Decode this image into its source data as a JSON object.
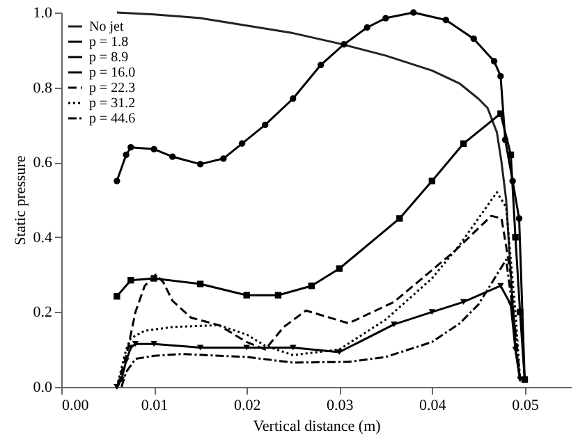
{
  "chart_data": {
    "type": "line",
    "xlabel": "Vertical distance (m)",
    "ylabel": "Static pressure",
    "xlim": [
      0,
      0.055
    ],
    "ylim": [
      0,
      1.0
    ],
    "xticks": [
      {
        "value": 0,
        "label": "0.00"
      },
      {
        "value": 0.01,
        "label": "0.01"
      },
      {
        "value": 0.02,
        "label": "0.02"
      },
      {
        "value": 0.03,
        "label": "0.03"
      },
      {
        "value": 0.04,
        "label": "0.04"
      },
      {
        "value": 0.05,
        "label": "0.05"
      }
    ],
    "yticks": [
      {
        "value": 0,
        "label": "0.0"
      },
      {
        "value": 0.2,
        "label": "0.2"
      },
      {
        "value": 0.4,
        "label": "0.4"
      },
      {
        "value": 0.6,
        "label": "0.6"
      },
      {
        "value": 0.8,
        "label": "0.8"
      },
      {
        "value": 1.0,
        "label": "1.0"
      }
    ],
    "legend": "top left",
    "series": [
      {
        "name": "No jet",
        "color": "#222222",
        "line_style": "solid",
        "x": [
          0.006,
          0.01,
          0.015,
          0.02,
          0.025,
          0.03,
          0.035,
          0.04,
          0.043,
          0.045,
          0.046,
          0.047,
          0.0475,
          0.048,
          0.0485,
          0.049,
          0.0495
        ],
        "values": [
          1.0,
          0.995,
          0.985,
          0.965,
          0.945,
          0.917,
          0.885,
          0.845,
          0.81,
          0.77,
          0.745,
          0.68,
          0.6,
          0.5,
          0.3,
          0.1,
          0.02
        ]
      },
      {
        "name": "p = 1.8",
        "color": "#000000",
        "line_style": "solid",
        "marker": "circle",
        "x": [
          0.006,
          0.007,
          0.0075,
          0.01,
          0.012,
          0.015,
          0.0175,
          0.0195,
          0.022,
          0.025,
          0.028,
          0.0305,
          0.033,
          0.035,
          0.038,
          0.0415,
          0.0445,
          0.0467,
          0.0474,
          0.0479,
          0.0487,
          0.0494,
          0.05
        ],
        "values": [
          0.55,
          0.62,
          0.64,
          0.635,
          0.615,
          0.595,
          0.61,
          0.65,
          0.7,
          0.77,
          0.86,
          0.915,
          0.96,
          0.985,
          1.0,
          0.98,
          0.93,
          0.87,
          0.83,
          0.66,
          0.55,
          0.45,
          0.02
        ]
      },
      {
        "name": "p = 8.9",
        "color": "#000000",
        "line_style": "solid",
        "marker": "square",
        "x": [
          0.006,
          0.0075,
          0.01,
          0.015,
          0.02,
          0.0234,
          0.027,
          0.03,
          0.0365,
          0.04,
          0.0434,
          0.0474,
          0.0485,
          0.049,
          0.0495,
          0.05
        ],
        "values": [
          0.242,
          0.285,
          0.29,
          0.275,
          0.245,
          0.245,
          0.27,
          0.316,
          0.45,
          0.55,
          0.65,
          0.73,
          0.62,
          0.4,
          0.2,
          0.02
        ]
      },
      {
        "name": "p = 16.0",
        "color": "#000000",
        "line_style": "solid",
        "marker": "triangle",
        "x": [
          0.006,
          0.0065,
          0.007,
          0.0075,
          0.008,
          0.01,
          0.015,
          0.02,
          0.025,
          0.03,
          0.0359,
          0.04,
          0.0434,
          0.0474,
          0.0485,
          0.049,
          0.0495
        ],
        "values": [
          0.0,
          0.02,
          0.07,
          0.105,
          0.115,
          0.115,
          0.105,
          0.105,
          0.105,
          0.093,
          0.167,
          0.2,
          0.227,
          0.27,
          0.22,
          0.1,
          0.02
        ]
      },
      {
        "name": "p = 22.3",
        "color": "#000000",
        "line_style": "dashed",
        "x": [
          0.006,
          0.007,
          0.008,
          0.009,
          0.0102,
          0.011,
          0.012,
          0.014,
          0.017,
          0.02,
          0.022,
          0.024,
          0.0264,
          0.031,
          0.0359,
          0.0425,
          0.0464,
          0.0475,
          0.0485,
          0.049,
          0.0495
        ],
        "values": [
          0.0,
          0.08,
          0.2,
          0.27,
          0.3,
          0.28,
          0.23,
          0.185,
          0.165,
          0.12,
          0.1,
          0.16,
          0.204,
          0.17,
          0.227,
          0.364,
          0.457,
          0.45,
          0.3,
          0.12,
          0.02
        ]
      },
      {
        "name": "p = 31.2",
        "color": "#000000",
        "line_style": "dotted",
        "x": [
          0.006,
          0.007,
          0.0075,
          0.009,
          0.012,
          0.017,
          0.02,
          0.022,
          0.025,
          0.03,
          0.035,
          0.04,
          0.043,
          0.045,
          0.047,
          0.048,
          0.049,
          0.0495
        ],
        "values": [
          0.0,
          0.1,
          0.13,
          0.15,
          0.16,
          0.165,
          0.14,
          0.11,
          0.085,
          0.1,
          0.18,
          0.29,
          0.38,
          0.45,
          0.52,
          0.48,
          0.2,
          0.02
        ]
      },
      {
        "name": "p = 44.6",
        "color": "#000000",
        "line_style": "dashdot",
        "x": [
          0.0065,
          0.007,
          0.008,
          0.01,
          0.013,
          0.02,
          0.025,
          0.031,
          0.035,
          0.04,
          0.043,
          0.045,
          0.047,
          0.048,
          0.049,
          0.0495
        ],
        "values": [
          0.0,
          0.04,
          0.075,
          0.083,
          0.088,
          0.08,
          0.065,
          0.067,
          0.08,
          0.12,
          0.17,
          0.22,
          0.3,
          0.34,
          0.15,
          0.02
        ]
      }
    ]
  }
}
